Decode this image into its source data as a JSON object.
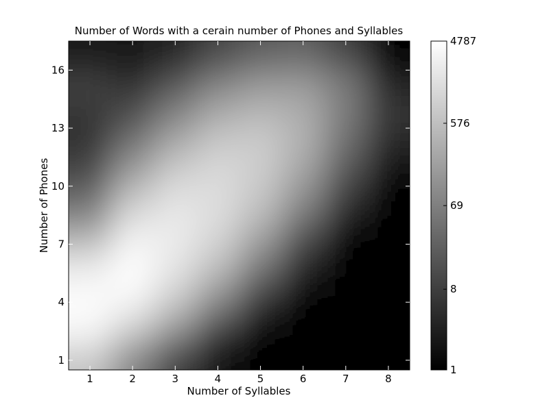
{
  "chart_data": {
    "type": "heatmap",
    "title": "Number of Words with a cerain number of Phones and Syllables",
    "xlabel": "Number of Syllables",
    "ylabel": "Number of Phones",
    "x_ticks": [
      1,
      2,
      3,
      4,
      5,
      6,
      7,
      8
    ],
    "y_ticks": [
      1,
      4,
      7,
      10,
      13,
      16
    ],
    "xlim": [
      0.5,
      8.5
    ],
    "ylim": [
      0.5,
      17.5
    ],
    "x": [
      1,
      2,
      3,
      4,
      5,
      6,
      7,
      8
    ],
    "y": [
      1,
      2,
      3,
      4,
      5,
      6,
      7,
      8,
      9,
      10,
      11,
      12,
      13,
      14,
      15,
      16,
      17
    ],
    "values": [
      [
        700,
        80,
        8,
        2,
        1,
        1,
        1,
        1
      ],
      [
        2500,
        400,
        50,
        3,
        1,
        1,
        1,
        1
      ],
      [
        4000,
        1500,
        250,
        20,
        2,
        1,
        1,
        1
      ],
      [
        4500,
        3000,
        700,
        80,
        5,
        1,
        1,
        1
      ],
      [
        3500,
        4787,
        1500,
        250,
        20,
        2,
        1,
        1
      ],
      [
        2000,
        4500,
        2000,
        600,
        60,
        4,
        1,
        1
      ],
      [
        600,
        3500,
        2500,
        1000,
        150,
        10,
        1,
        1
      ],
      [
        150,
        2000,
        2500,
        1400,
        350,
        30,
        2,
        1
      ],
      [
        50,
        1000,
        2000,
        1600,
        600,
        80,
        5,
        1
      ],
      [
        20,
        400,
        1400,
        1500,
        800,
        150,
        10,
        1
      ],
      [
        10,
        150,
        800,
        1300,
        900,
        250,
        20,
        2
      ],
      [
        6,
        60,
        350,
        900,
        900,
        350,
        35,
        3
      ],
      [
        5,
        25,
        150,
        500,
        700,
        350,
        50,
        5
      ],
      [
        6,
        12,
        60,
        250,
        400,
        300,
        60,
        6
      ],
      [
        10,
        6,
        25,
        100,
        200,
        200,
        60,
        4
      ],
      [
        5,
        3,
        8,
        35,
        80,
        90,
        35,
        2
      ],
      [
        2,
        2,
        3,
        10,
        20,
        25,
        8,
        1
      ]
    ],
    "colorbar": {
      "scale": "log",
      "min": 1,
      "max": 4787,
      "ticks": [
        1,
        8,
        69,
        576,
        4787
      ],
      "colors": [
        "#000000",
        "#ffffff"
      ]
    }
  }
}
